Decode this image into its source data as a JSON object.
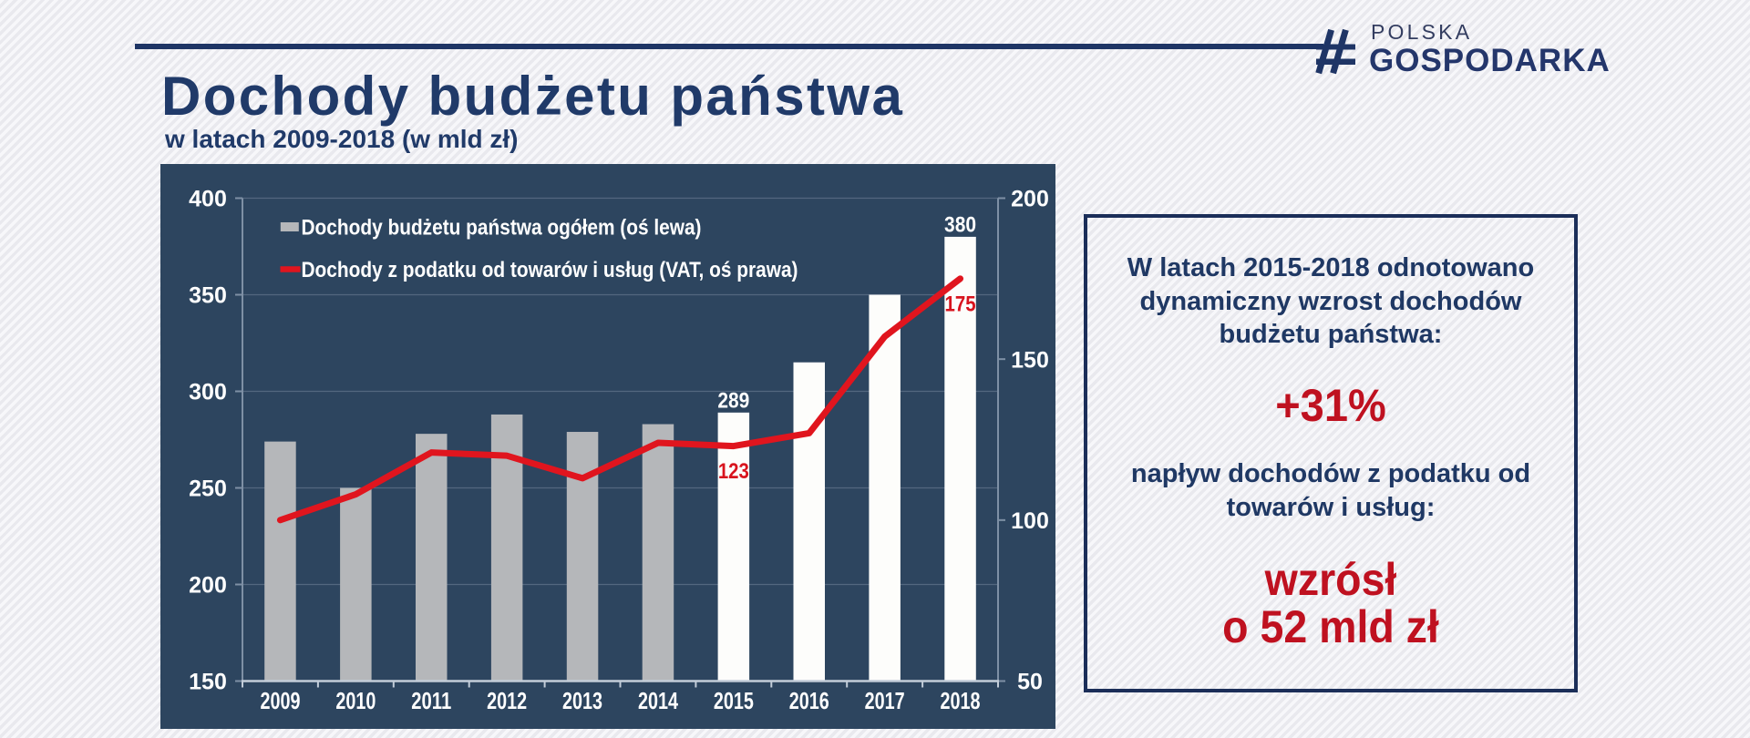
{
  "logo": {
    "hash": "#",
    "line1": "POLSKA",
    "line2": "GOSPODARKA"
  },
  "header": {
    "title": "Dochody budżetu państwa",
    "subtitle": "w latach 2009-2018 (w mld zł)"
  },
  "box": {
    "p1_lines": "W latach 2015-2018 odnotowano\ndynamiczny wzrost dochodów\nbudżetu państwa:",
    "v1": "+31%",
    "p2_lines": "napływ dochodów z podatku od\ntowarów i usług:",
    "v2_lines": "wzrósł\no 52 mld zł"
  },
  "chart_data": {
    "type": "bar+line",
    "categories": [
      "2009",
      "2010",
      "2011",
      "2012",
      "2013",
      "2014",
      "2015",
      "2016",
      "2017",
      "2018"
    ],
    "series": [
      {
        "name": "Dochody budżetu państwa ogółem (oś lewa)",
        "type": "bar",
        "axis": "left",
        "values": [
          274,
          250,
          278,
          288,
          279,
          283,
          289,
          315,
          350,
          380
        ]
      },
      {
        "name": "Dochody z podatku od towarów i usług (VAT, oś prawa)",
        "type": "line",
        "axis": "right",
        "values": [
          100,
          108,
          121,
          120,
          113,
          124,
          123,
          127,
          157,
          175
        ]
      }
    ],
    "left_axis": {
      "min": 150,
      "max": 400,
      "ticks": [
        400,
        350,
        300,
        250,
        200,
        150
      ]
    },
    "right_axis": {
      "min": 50,
      "max": 200,
      "ticks": [
        200,
        150,
        100,
        50
      ]
    },
    "data_labels": [
      {
        "series": 0,
        "index": 6,
        "text": "289"
      },
      {
        "series": 0,
        "index": 9,
        "text": "380"
      },
      {
        "series": 1,
        "index": 6,
        "text": "123"
      },
      {
        "series": 1,
        "index": 9,
        "text": "175"
      }
    ],
    "legend_position": "top-left",
    "grid": true,
    "colors": {
      "panel_bg": "#2d455f",
      "bar_gray": "#b5b7ba",
      "bar_white": "#fdfdfb",
      "bar_gray_years": [
        "2009",
        "2010",
        "2011",
        "2012",
        "2013",
        "2014"
      ],
      "line_red": "#e0151e",
      "label_white": "#ffffff",
      "label_red": "#d8141e",
      "gridline": "#53677f",
      "axis_line": "#7e90a5",
      "baseline": "#c3cdd9"
    }
  }
}
